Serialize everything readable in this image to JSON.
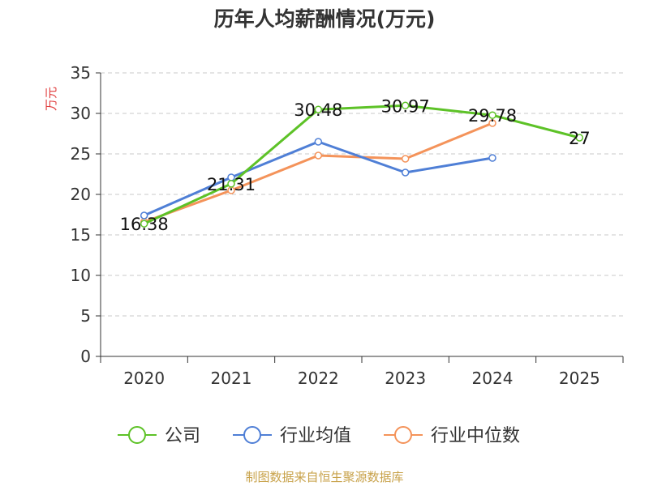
{
  "footer": "制图数据来自恒生聚源数据库",
  "chart_data": {
    "type": "line",
    "title": "历年人均薪酬情况(万元)",
    "ylabel": "万元",
    "xlabel": "",
    "ylim": [
      0,
      35
    ],
    "yticks": [
      0,
      5,
      10,
      15,
      20,
      25,
      30,
      35
    ],
    "categories": [
      "2020",
      "2021",
      "2022",
      "2023",
      "2024",
      "2025"
    ],
    "grid": true,
    "legend_position": "bottom",
    "series": [
      {
        "name": "公司",
        "color": "#5dc227",
        "values": [
          16.38,
          21.31,
          30.48,
          30.97,
          29.78,
          27
        ],
        "labels": [
          "16.38",
          "21.31",
          "30.48",
          "30.97",
          "29.78",
          "27"
        ]
      },
      {
        "name": "行业均值",
        "color": "#4f7fd6",
        "values": [
          17.4,
          22.1,
          26.5,
          22.7,
          24.5,
          null
        ]
      },
      {
        "name": "行业中位数",
        "color": "#f4935a",
        "values": [
          16.6,
          20.5,
          24.8,
          24.4,
          28.8,
          null
        ]
      }
    ]
  }
}
